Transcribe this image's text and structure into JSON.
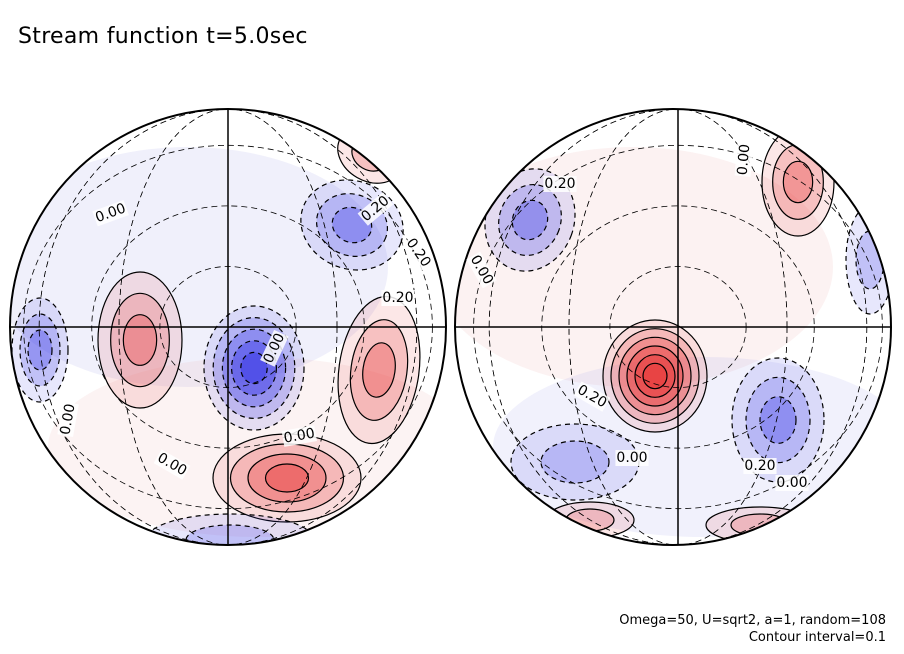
{
  "title": "Stream function t=5.0sec",
  "info": {
    "params": "Omega=50, U=sqrt2, a=1, random=108",
    "contour_interval": "Contour interval=0.1"
  },
  "colors": {
    "positive": "#e83c3c",
    "negative": "#3c3ce8",
    "line": "#000000"
  },
  "chart_data": {
    "type": "heatmap",
    "title": "Stream function t=5.0sec",
    "contour_interval": 0.1,
    "panels": [
      {
        "name": "left-hemisphere",
        "contour_labels": [
          "0.00",
          "0.20",
          "0.00",
          "0.00",
          "0.20",
          "0.20",
          "0.00",
          "0.00"
        ],
        "features": [
          {
            "sign": "negative",
            "value": -0.5,
            "location": "center"
          },
          {
            "sign": "positive",
            "value": 0.4,
            "location": "lower-center"
          },
          {
            "sign": "positive",
            "value": 0.35,
            "location": "right"
          },
          {
            "sign": "positive",
            "value": 0.25,
            "location": "left-center"
          },
          {
            "sign": "negative",
            "value": -0.3,
            "location": "upper-right"
          },
          {
            "sign": "negative",
            "value": -0.25,
            "location": "far-left"
          },
          {
            "sign": "negative",
            "value": -0.2,
            "location": "bottom"
          },
          {
            "sign": "positive",
            "value": 0.2,
            "location": "top-right-edge"
          }
        ]
      },
      {
        "name": "right-hemisphere",
        "contour_labels": [
          "0.20",
          "0.00",
          "0.00",
          "0.20",
          "0.00",
          "0.20",
          "0.00"
        ],
        "features": [
          {
            "sign": "positive",
            "value": 0.6,
            "location": "center"
          },
          {
            "sign": "negative",
            "value": -0.35,
            "location": "upper-left"
          },
          {
            "sign": "negative",
            "value": -0.35,
            "location": "lower-right"
          },
          {
            "sign": "positive",
            "value": 0.3,
            "location": "upper-right"
          },
          {
            "sign": "negative",
            "value": -0.2,
            "location": "lower-left"
          },
          {
            "sign": "negative",
            "value": -0.2,
            "location": "right-edge"
          },
          {
            "sign": "positive",
            "value": 0.15,
            "location": "bottom"
          },
          {
            "sign": "positive",
            "value": 0.15,
            "location": "top"
          }
        ]
      }
    ]
  }
}
